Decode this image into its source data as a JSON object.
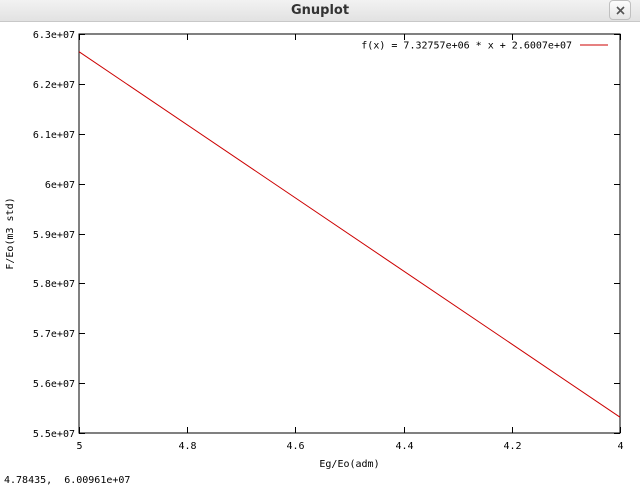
{
  "window": {
    "title": "Gnuplot",
    "close_icon": "close-icon"
  },
  "status_bar": {
    "coordinates": "4.78435,  6.00961e+07"
  },
  "colors": {
    "series": "#cc0000",
    "axes": "#000000"
  },
  "chart_data": {
    "type": "line",
    "title": "",
    "xlabel": "Eg/Eo(adm)",
    "ylabel": "F/Eo(m3 std)",
    "xlim": [
      5,
      4
    ],
    "ylim": [
      55000000,
      63000000
    ],
    "x_ticks": [
      5,
      4.8,
      4.6,
      4.4,
      4.2,
      4
    ],
    "x_tick_labels": [
      "5",
      "4.8",
      "4.6",
      "4.4",
      "4.2",
      "4"
    ],
    "y_ticks": [
      55000000,
      56000000,
      57000000,
      58000000,
      59000000,
      60000000,
      61000000,
      62000000,
      63000000
    ],
    "y_tick_labels": [
      "5.5e+07",
      "5.6e+07",
      "5.7e+07",
      "5.8e+07",
      "5.9e+07",
      "6e+07",
      "6.1e+07",
      "6.2e+07",
      "6.3e+07"
    ],
    "legend_position": "top-right",
    "series": [
      {
        "name": "f(x) = 7.32757e+06 * x + 2.6007e+07",
        "slope": 7327570,
        "intercept": 26007000,
        "x": [
          5,
          4
        ],
        "y": [
          62644850,
          55317280
        ]
      }
    ]
  }
}
